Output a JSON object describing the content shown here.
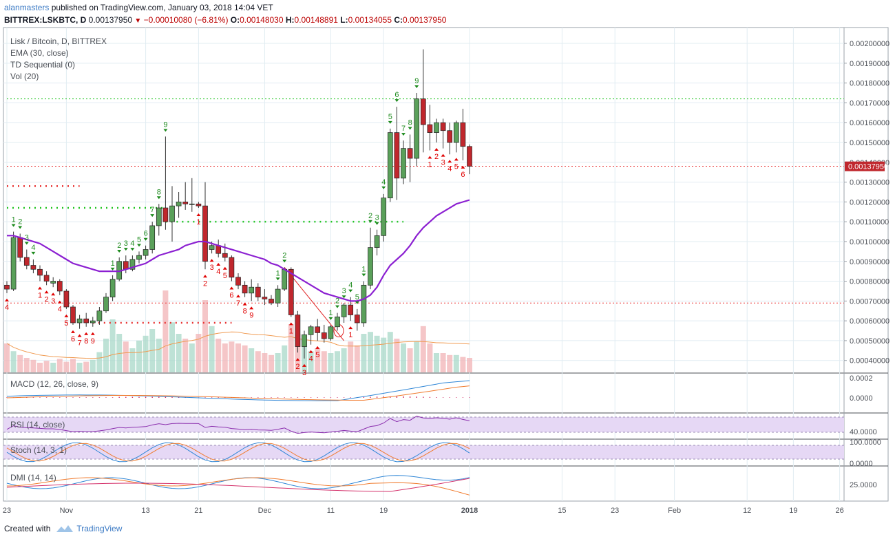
{
  "header": {
    "user": "alanmasters",
    "published_text": "published on TradingView.com, January 03, 2018 14:04 VET",
    "symbol": "BITTREX:LSKBTC, D",
    "last": "0.00137950",
    "change": "−0.00010080 (−6.81%)",
    "o_label": "O:",
    "o_value": "0.00148030",
    "h_label": "H:",
    "h_value": "0.00148891",
    "l_label": "L:",
    "l_value": "0.00134055",
    "c_label": "C:",
    "c_value": "0.00137950"
  },
  "legend": {
    "title": "Lisk / Bitcoin, D, BITTREX",
    "ema": "EMA (30, close)",
    "td": "TD Sequential (0)",
    "vol": "Vol (20)"
  },
  "panes": {
    "macd": "MACD (12, 26, close, 9)",
    "rsi": "RSI (14, close)",
    "stoch": "Stoch (14, 3, 1)",
    "dmi": "DMI (14, 14)"
  },
  "footer": {
    "created_with": "Created with",
    "brand": "TradingView"
  },
  "colors": {
    "up": "#5aa05a",
    "down": "#c0272d",
    "ema": "#8b1fd1",
    "td_green": "#1c8a1c",
    "td_red": "#e00000",
    "price_tag": "#c0272d"
  },
  "chart_data": [
    {
      "type": "candlestick",
      "title": "Lisk / Bitcoin, D, BITTREX",
      "y_ticks": [
        "0.00200000",
        "0.00190000",
        "0.00180000",
        "0.00170000",
        "0.00160000",
        "0.00150000",
        "0.00140000",
        "0.00130000",
        "0.00120000",
        "0.00110000",
        "0.00100000",
        "0.00090000",
        "0.00080000",
        "0.00070000",
        "0.00060000",
        "0.00050000",
        "0.00040000"
      ],
      "ylim": [
        0.00034,
        0.00208
      ],
      "last_price_label": "0.00137950",
      "x_ticks": [
        {
          "label": "23",
          "i": 0
        },
        {
          "label": "Nov",
          "i": 9
        },
        {
          "label": "13",
          "i": 21
        },
        {
          "label": "21",
          "i": 29
        },
        {
          "label": "Dec",
          "i": 39
        },
        {
          "label": "11",
          "i": 49
        },
        {
          "label": "19",
          "i": 57
        },
        {
          "label": "2018",
          "i": 70
        },
        {
          "label": "15",
          "i": 84
        },
        {
          "label": "23",
          "i": 92
        },
        {
          "label": "Feb",
          "i": 101
        },
        {
          "label": "12",
          "i": 112
        },
        {
          "label": "19",
          "i": 119
        },
        {
          "label": "26",
          "i": 126
        }
      ],
      "ohlc": [
        [
          0.00078,
          0.0008,
          0.00074,
          0.00076
        ],
        [
          0.00076,
          0.00105,
          0.00075,
          0.00102
        ],
        [
          0.00102,
          0.00104,
          0.0009,
          0.00092
        ],
        [
          0.00092,
          0.00096,
          0.00086,
          0.00088
        ],
        [
          0.00088,
          0.00091,
          0.00084,
          0.00086
        ],
        [
          0.00086,
          0.00088,
          0.0008,
          0.00083
        ],
        [
          0.00083,
          0.00085,
          0.00078,
          0.0008
        ],
        [
          0.00079,
          0.00082,
          0.00077,
          0.0008
        ],
        [
          0.0008,
          0.00081,
          0.00073,
          0.00075
        ],
        [
          0.00075,
          0.00076,
          0.00066,
          0.00067
        ],
        [
          0.00067,
          0.00068,
          0.00058,
          0.00059
        ],
        [
          0.00059,
          0.00063,
          0.00056,
          0.00061
        ],
        [
          0.00061,
          0.00064,
          0.00057,
          0.00059
        ],
        [
          0.00059,
          0.00062,
          0.00057,
          0.0006
        ],
        [
          0.0006,
          0.00067,
          0.00058,
          0.00065
        ],
        [
          0.00065,
          0.00074,
          0.00064,
          0.00072
        ],
        [
          0.00072,
          0.00083,
          0.0007,
          0.00081
        ],
        [
          0.00081,
          0.00092,
          0.0008,
          0.0009
        ],
        [
          0.0009,
          0.00093,
          0.00084,
          0.00086
        ],
        [
          0.00086,
          0.00093,
          0.00085,
          0.00091
        ],
        [
          0.00091,
          0.00095,
          0.00089,
          0.00093
        ],
        [
          0.00093,
          0.00098,
          0.00091,
          0.00096
        ],
        [
          0.00096,
          0.0011,
          0.00094,
          0.00108
        ],
        [
          0.00108,
          0.00119,
          0.00103,
          0.00117
        ],
        [
          0.00117,
          0.00153,
          0.00106,
          0.0011
        ],
        [
          0.0011,
          0.00128,
          0.001,
          0.00118
        ],
        [
          0.00118,
          0.00125,
          0.00112,
          0.0012
        ],
        [
          0.0012,
          0.0013,
          0.00116,
          0.00119
        ],
        [
          0.00119,
          0.00132,
          0.00115,
          0.00119
        ],
        [
          0.00119,
          0.0012,
          0.00117,
          0.00118
        ],
        [
          0.00118,
          0.0013,
          0.00086,
          0.0009
        ],
        [
          0.00096,
          0.001,
          0.00094,
          0.00098
        ],
        [
          0.00098,
          0.00101,
          0.00092,
          0.00094
        ],
        [
          0.00094,
          0.00099,
          0.0009,
          0.00092
        ],
        [
          0.00092,
          0.00093,
          0.0008,
          0.00082
        ],
        [
          0.00082,
          0.00084,
          0.00076,
          0.00078
        ],
        [
          0.00078,
          0.0008,
          0.00072,
          0.00074
        ],
        [
          0.00074,
          0.00081,
          0.0007,
          0.00077
        ],
        [
          0.00077,
          0.00079,
          0.0007,
          0.00072
        ],
        [
          0.00072,
          0.00076,
          0.00068,
          0.00071
        ],
        [
          0.00071,
          0.00073,
          0.00068,
          0.00069
        ],
        [
          0.00069,
          0.00078,
          0.00067,
          0.00076
        ],
        [
          0.00076,
          0.00087,
          0.00075,
          0.00086
        ],
        [
          0.00086,
          0.00087,
          0.00062,
          0.00063
        ],
        [
          0.00063,
          0.00065,
          0.00044,
          0.00047
        ],
        [
          0.00047,
          0.00055,
          0.00041,
          0.00053
        ],
        [
          0.00053,
          0.00058,
          0.00048,
          0.00057
        ],
        [
          0.00057,
          0.00061,
          0.0005,
          0.00054
        ],
        [
          0.00054,
          0.00058,
          0.00049,
          0.00051
        ],
        [
          0.00051,
          0.00058,
          0.0005,
          0.00057
        ],
        [
          0.00057,
          0.00064,
          0.00055,
          0.00062
        ],
        [
          0.00062,
          0.00069,
          0.00059,
          0.00068
        ],
        [
          0.00068,
          0.00072,
          0.0006,
          0.00063
        ],
        [
          0.00063,
          0.00066,
          0.00055,
          0.00059
        ],
        [
          0.00059,
          0.0008,
          0.00057,
          0.00078
        ],
        [
          0.00078,
          0.00107,
          0.00076,
          0.00097
        ],
        [
          0.00097,
          0.00106,
          0.00093,
          0.00103
        ],
        [
          0.00103,
          0.00124,
          0.001,
          0.00122
        ],
        [
          0.00122,
          0.00157,
          0.0012,
          0.00155
        ],
        [
          0.00155,
          0.00168,
          0.00121,
          0.00132
        ],
        [
          0.00132,
          0.00151,
          0.00129,
          0.00147
        ],
        [
          0.00147,
          0.00154,
          0.0013,
          0.00142
        ],
        [
          0.00142,
          0.00175,
          0.00138,
          0.00172
        ],
        [
          0.00172,
          0.00197,
          0.00145,
          0.00159
        ],
        [
          0.00159,
          0.00169,
          0.00146,
          0.00155
        ],
        [
          0.00155,
          0.00162,
          0.0015,
          0.0016
        ],
        [
          0.0016,
          0.00162,
          0.00147,
          0.00156
        ],
        [
          0.00156,
          0.0016,
          0.00144,
          0.0015
        ],
        [
          0.0015,
          0.00161,
          0.00145,
          0.0016
        ],
        [
          0.0016,
          0.00167,
          0.00141,
          0.00148
        ],
        [
          0.00148,
          0.00149,
          0.00134,
          0.00138
        ]
      ],
      "ema30": [
        0.00103,
        0.00103,
        0.00102,
        0.00101,
        0.001,
        0.00099,
        0.00097,
        0.00095,
        0.00093,
        0.00091,
        0.00089,
        0.00088,
        0.00087,
        0.00086,
        0.00085,
        0.00085,
        0.00085,
        0.00085,
        0.00086,
        0.00087,
        0.00088,
        0.00089,
        0.00091,
        0.00093,
        0.00094,
        0.00095,
        0.00096,
        0.00098,
        0.00099,
        0.001,
        0.001,
        0.00099,
        0.00098,
        0.00097,
        0.00096,
        0.00095,
        0.00094,
        0.00093,
        0.00092,
        0.00091,
        0.00089,
        0.00088,
        0.00086,
        0.00084,
        0.00082,
        0.0008,
        0.00078,
        0.00076,
        0.00074,
        0.00073,
        0.00072,
        0.00071,
        0.0007,
        0.0007,
        0.00071,
        0.00073,
        0.00077,
        0.00083,
        0.00088,
        0.00091,
        0.00094,
        0.00098,
        0.00103,
        0.00107,
        0.0011,
        0.00113,
        0.00115,
        0.00117,
        0.00119,
        0.0012,
        0.00121
      ],
      "volume": [
        0.3,
        0.22,
        0.18,
        0.15,
        0.13,
        0.1,
        0.12,
        0.1,
        0.14,
        0.11,
        0.14,
        0.1,
        0.11,
        0.13,
        0.21,
        0.35,
        0.55,
        0.4,
        0.32,
        0.25,
        0.33,
        0.38,
        0.45,
        0.35,
        0.85,
        0.52,
        0.4,
        0.35,
        0.3,
        0.4,
        0.75,
        0.48,
        0.35,
        0.3,
        0.32,
        0.3,
        0.28,
        0.25,
        0.22,
        0.2,
        0.18,
        0.2,
        0.28,
        0.5,
        0.4,
        0.35,
        0.22,
        0.25,
        0.22,
        0.2,
        0.22,
        0.25,
        0.32,
        0.28,
        0.4,
        0.42,
        0.38,
        0.36,
        0.42,
        0.35,
        0.3,
        0.25,
        0.32,
        0.48,
        0.3,
        0.2,
        0.2,
        0.18,
        0.18,
        0.16,
        0.15
      ],
      "td_green": [
        [
          1,
          "1"
        ],
        [
          2,
          "2"
        ],
        [
          3,
          "3"
        ],
        [
          4,
          "4"
        ],
        [
          16,
          "1"
        ],
        [
          17,
          "2"
        ],
        [
          18,
          "3"
        ],
        [
          19,
          "4"
        ],
        [
          20,
          "5"
        ],
        [
          21,
          "6"
        ],
        [
          22,
          "7"
        ],
        [
          23,
          "8"
        ],
        [
          24,
          "9"
        ],
        [
          41,
          "1"
        ],
        [
          42,
          "2"
        ],
        [
          49,
          "1"
        ],
        [
          50,
          "2"
        ],
        [
          51,
          "3"
        ],
        [
          52,
          "4"
        ],
        [
          53,
          "5"
        ],
        [
          54,
          "1"
        ],
        [
          55,
          "2"
        ],
        [
          56,
          "3"
        ],
        [
          57,
          "4"
        ],
        [
          58,
          "5"
        ],
        [
          59,
          "6"
        ],
        [
          60,
          "7"
        ],
        [
          61,
          "8"
        ],
        [
          62,
          "9"
        ]
      ],
      "td_red": [
        [
          0,
          "4"
        ],
        [
          5,
          "1"
        ],
        [
          6,
          "2"
        ],
        [
          7,
          "3"
        ],
        [
          8,
          "4"
        ],
        [
          9,
          "5"
        ],
        [
          10,
          "6"
        ],
        [
          11,
          "7"
        ],
        [
          12,
          "8"
        ],
        [
          13,
          "9"
        ],
        [
          29,
          "1"
        ],
        [
          30,
          "2"
        ],
        [
          31,
          "3"
        ],
        [
          32,
          "4"
        ],
        [
          33,
          "5"
        ],
        [
          34,
          "6"
        ],
        [
          35,
          "7"
        ],
        [
          36,
          "8"
        ],
        [
          37,
          "9"
        ],
        [
          43,
          "1"
        ],
        [
          44,
          "2"
        ],
        [
          45,
          "3"
        ],
        [
          46,
          "4"
        ],
        [
          47,
          "5"
        ],
        [
          52,
          "1"
        ],
        [
          64,
          "1"
        ],
        [
          65,
          "2"
        ],
        [
          66,
          "3"
        ],
        [
          67,
          "4"
        ],
        [
          68,
          "5"
        ],
        [
          69,
          "6"
        ]
      ],
      "support_resistance": [
        {
          "price": 0.00172,
          "color": "green",
          "from": 0,
          "to": 130
        },
        {
          "price": 0.00138,
          "color": "red",
          "from": 0,
          "to": 130
        },
        {
          "price": 0.00128,
          "color": "red",
          "from": 0,
          "to": 11
        },
        {
          "price": 0.00117,
          "color": "green",
          "from": 0,
          "to": 24
        },
        {
          "price": 0.0011,
          "color": "green",
          "from": 24,
          "to": 60
        },
        {
          "price": 0.00069,
          "color": "red",
          "from": 0,
          "to": 130
        },
        {
          "price": 0.00059,
          "color": "red",
          "from": 13,
          "to": 34
        }
      ]
    },
    {
      "type": "line",
      "title": "MACD (12, 26, close, 9)",
      "y_ticks": [
        "0.0002",
        "0.0000"
      ]
    },
    {
      "type": "line",
      "title": "RSI (14, close)",
      "y_ticks": [
        "40.0000"
      ]
    },
    {
      "type": "line",
      "title": "Stoch (14, 3, 1)",
      "y_ticks": [
        "100.0000",
        "0.0000"
      ]
    },
    {
      "type": "line",
      "title": "DMI (14, 14)",
      "y_ticks": [
        "25.0000"
      ]
    }
  ]
}
